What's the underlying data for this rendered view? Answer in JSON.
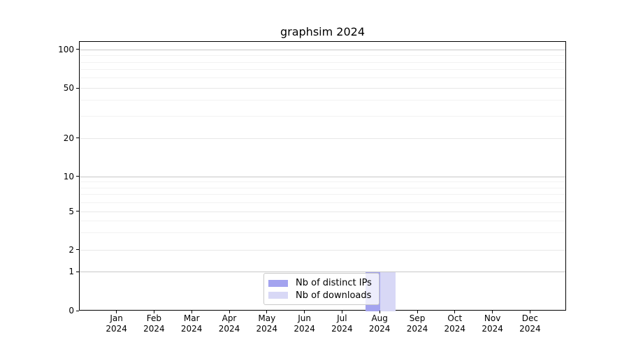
{
  "title": "graphsim 2024",
  "chart_data": {
    "type": "bar",
    "title": "graphsim 2024",
    "categories": [
      "Jan",
      "Feb",
      "Mar",
      "Apr",
      "May",
      "Jun",
      "Jul",
      "Aug",
      "Sep",
      "Oct",
      "Nov",
      "Dec"
    ],
    "category_year_line": "2024",
    "series": [
      {
        "name": "Nb of distinct IPs",
        "color": "#a3a3ef",
        "values": [
          0,
          0,
          0,
          0,
          0,
          0,
          0,
          1,
          0,
          0,
          0,
          0
        ]
      },
      {
        "name": "Nb of downloads",
        "color": "#d8d8f6",
        "values": [
          0,
          0,
          0,
          0,
          0,
          0,
          0,
          1,
          0,
          0,
          0,
          0
        ]
      }
    ],
    "y_ticks": [
      0,
      1,
      2,
      5,
      10,
      20,
      50,
      100
    ],
    "y_minor_ticks": [
      3,
      4,
      6,
      7,
      8,
      9,
      30,
      40,
      60,
      70,
      80,
      90
    ],
    "ylim": [
      0,
      110
    ],
    "xlabel": "",
    "ylabel": "",
    "grid": true,
    "legend_position": "lower center",
    "colors": {
      "major_pow10_grid": "#c8c8c8",
      "major_grid": "#e8e8e8",
      "minor_grid": "#f2f2f2",
      "axis": "#000000"
    }
  }
}
